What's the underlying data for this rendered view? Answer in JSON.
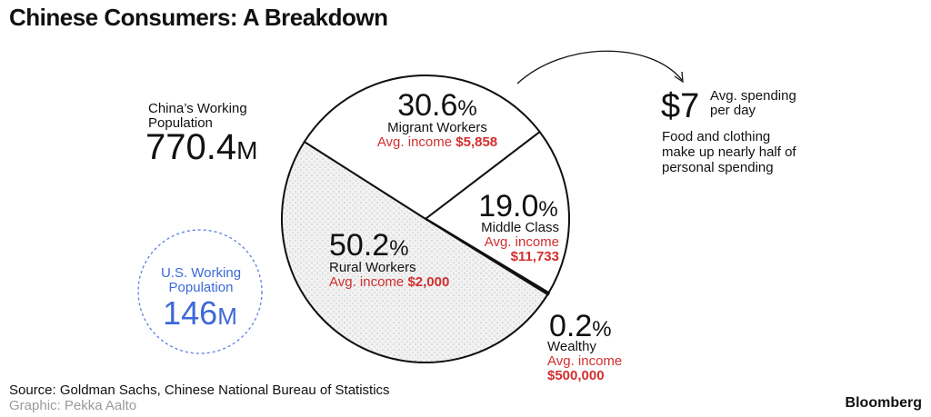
{
  "title": "Chinese Consumers: A Breakdown",
  "china": {
    "label_line1": "China’s Working",
    "label_line2": "Population",
    "value": "770.4",
    "unit": "M"
  },
  "us": {
    "label_line1": "U.S. Working",
    "label_line2": "Population",
    "value": "146",
    "unit": "M"
  },
  "spending": {
    "value": "$7",
    "label_line1": "Avg. spending",
    "label_line2": "per day",
    "note_lines": [
      "Food and clothing",
      "make up nearly half of",
      "personal spending"
    ]
  },
  "colors": {
    "accent_red": "#d32f2f",
    "us_blue": "#3d68d8",
    "slice_fill": "#ececec"
  },
  "chart_data": {
    "type": "pie",
    "title": "Chinese Consumers: A Breakdown",
    "slices": [
      {
        "name": "Migrant Workers",
        "value": 30.6,
        "pct_label": "30.6",
        "income_label": "Avg. income",
        "income": "$5,858"
      },
      {
        "name": "Middle Class",
        "value": 19.0,
        "pct_label": "19.0",
        "income_label": "Avg. income",
        "income": "$11,733"
      },
      {
        "name": "Wealthy",
        "value": 0.2,
        "pct_label": "0.2",
        "income_label": "Avg. income",
        "income": "$500,000"
      },
      {
        "name": "Rural Workers",
        "value": 50.2,
        "pct_label": "50.2",
        "income_label": "Avg. income",
        "income": "$2,000"
      }
    ],
    "pct_suffix": "%"
  },
  "footer": {
    "source": "Source: Goldman Sachs, Chinese National Bureau of Statistics",
    "credit": "Graphic: Pekka Aalto",
    "brand": "Bloomberg"
  }
}
